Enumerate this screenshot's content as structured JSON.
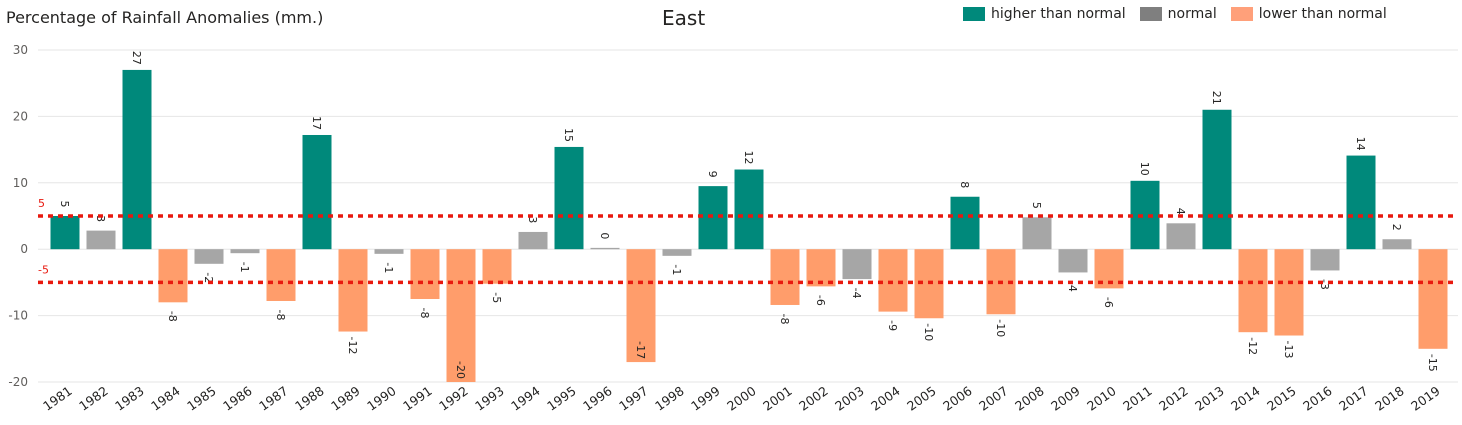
{
  "chart_data": {
    "type": "bar",
    "title": "East",
    "ylabel": "Percentage of Rainfall Anomalies (mm.)",
    "xlabel": "",
    "ylim": [
      -20,
      30
    ],
    "yticks": [
      -20,
      -10,
      0,
      10,
      20,
      30
    ],
    "grid": true,
    "legend_position": "top-right",
    "legend": [
      {
        "label": "higher than normal",
        "color": "#00897b"
      },
      {
        "label": "normal",
        "color": "#7f7f7f"
      },
      {
        "label": "lower than normal",
        "color": "#ffa07a"
      }
    ],
    "bar_colors": {
      "high": "#00897b",
      "normal": "#a6a6a6",
      "low": "#ff9d6b"
    },
    "reference_lines": [
      {
        "value": 5,
        "label": "5",
        "color": "#e8190f"
      },
      {
        "value": -5,
        "label": "-5",
        "color": "#e8190f"
      }
    ],
    "categories": [
      "1981",
      "1982",
      "1983",
      "1984",
      "1985",
      "1986",
      "1987",
      "1988",
      "1989",
      "1990",
      "1991",
      "1992",
      "1993",
      "1994",
      "1995",
      "1996",
      "1997",
      "1998",
      "1999",
      "2000",
      "2001",
      "2002",
      "2003",
      "2004",
      "2005",
      "2006",
      "2007",
      "2008",
      "2009",
      "2010",
      "2011",
      "2012",
      "2013",
      "2014",
      "2015",
      "2016",
      "2017",
      "2018",
      "2019"
    ],
    "values": [
      5,
      2.8,
      27,
      -8,
      -2.2,
      -0.6,
      -7.8,
      17.2,
      -12.4,
      -0.7,
      -7.5,
      -20,
      -5.2,
      2.6,
      15.4,
      0.2,
      -17,
      -1,
      9.5,
      12,
      -8.4,
      -5.6,
      -4.5,
      -9.4,
      -10.4,
      7.9,
      -9.8,
      4.8,
      -3.5,
      -5.9,
      10.3,
      3.9,
      21,
      -12.5,
      -13,
      -3.2,
      14.1,
      1.5,
      -15
    ],
    "data_labels": [
      "5",
      "3",
      "27",
      "-8",
      "-2",
      "-1",
      "-8",
      "17",
      "-12",
      "-1",
      "-8",
      "-20",
      "-5",
      "3",
      "15",
      "0",
      "-17",
      "-1",
      "9",
      "12",
      "-8",
      "-6",
      "-4",
      "-9",
      "-10",
      "8",
      "-10",
      "5",
      "-4",
      "-6",
      "10",
      "4",
      "21",
      "-12",
      "-13",
      "-3",
      "14",
      "2",
      "-15"
    ],
    "categories_class": [
      "high",
      "normal",
      "high",
      "low",
      "normal",
      "normal",
      "low",
      "high",
      "low",
      "normal",
      "low",
      "low",
      "low",
      "normal",
      "high",
      "normal",
      "low",
      "normal",
      "high",
      "high",
      "low",
      "low",
      "normal",
      "low",
      "low",
      "high",
      "low",
      "normal",
      "normal",
      "low",
      "high",
      "normal",
      "high",
      "low",
      "low",
      "normal",
      "high",
      "normal",
      "low"
    ]
  }
}
